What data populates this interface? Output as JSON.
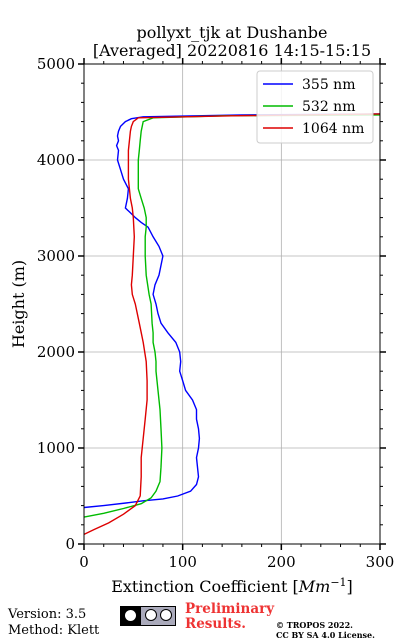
{
  "chart_data": {
    "type": "line",
    "title_line1": "pollyxt_tjk at Dushanbe",
    "title_line2": "[Averaged] 20220816 14:15-15:15",
    "xlabel": "Extinction Coefficient [",
    "xlabel_unit": "Mm",
    "xlabel_exp": "−1",
    "xlabel_close": "]",
    "ylabel": "Height (m)",
    "xlim": [
      0,
      300
    ],
    "ylim": [
      0,
      5000
    ],
    "xticks": [
      0,
      100,
      200,
      300
    ],
    "yticks": [
      0,
      1000,
      2000,
      3000,
      4000,
      5000
    ],
    "grid": true,
    "legend_position": "top-right",
    "series": [
      {
        "name": "355 nm",
        "color": "#0000ff",
        "x": [
          0,
          20,
          45,
          60,
          80,
          95,
          108,
          114,
          116,
          115,
          114,
          116,
          117,
          116,
          114,
          114,
          110,
          103,
          100,
          97,
          98,
          97,
          93,
          85,
          78,
          75,
          73,
          70,
          72,
          76,
          80,
          76,
          70,
          65,
          58,
          52,
          47,
          42,
          44,
          45,
          40,
          37,
          34,
          35,
          33,
          35,
          34,
          35,
          37,
          42,
          48,
          60,
          160,
          300
        ],
        "y": [
          380,
          400,
          430,
          450,
          470,
          500,
          550,
          620,
          700,
          800,
          900,
          1000,
          1100,
          1200,
          1300,
          1400,
          1500,
          1600,
          1700,
          1800,
          1900,
          2000,
          2100,
          2200,
          2300,
          2400,
          2500,
          2600,
          2700,
          2800,
          3000,
          3100,
          3200,
          3300,
          3350,
          3400,
          3450,
          3500,
          3600,
          3700,
          3800,
          3900,
          4000,
          4100,
          4150,
          4200,
          4250,
          4300,
          4350,
          4400,
          4430,
          4450,
          4470,
          4480
        ]
      },
      {
        "name": "532 nm",
        "color": "#00bb00",
        "x": [
          0,
          20,
          40,
          58,
          68,
          73,
          77,
          78,
          79,
          78,
          77,
          75,
          73,
          73,
          72,
          70,
          70,
          69,
          68,
          66,
          63,
          62,
          62,
          63,
          63,
          61,
          58,
          55,
          55,
          55,
          55,
          56,
          57,
          58,
          60,
          70,
          140,
          300
        ],
        "y": [
          280,
          320,
          370,
          420,
          480,
          550,
          650,
          800,
          1000,
          1200,
          1400,
          1600,
          1800,
          1900,
          2000,
          2100,
          2200,
          2300,
          2500,
          2600,
          2800,
          3000,
          3200,
          3300,
          3400,
          3500,
          3600,
          3700,
          3800,
          3900,
          4000,
          4100,
          4200,
          4300,
          4400,
          4440,
          4460,
          4470
        ]
      },
      {
        "name": "1064 nm",
        "color": "#dd0000",
        "x": [
          0,
          10,
          25,
          40,
          52,
          57,
          58,
          58,
          60,
          62,
          64,
          64,
          63,
          60,
          56,
          52,
          49,
          48,
          49,
          50,
          51,
          50,
          49,
          47,
          46,
          45,
          45,
          45,
          45,
          46,
          47,
          48,
          50,
          55,
          150,
          300
        ],
        "y": [
          100,
          150,
          220,
          310,
          400,
          500,
          700,
          900,
          1100,
          1300,
          1500,
          1700,
          1900,
          2100,
          2300,
          2500,
          2600,
          2700,
          2800,
          3000,
          3200,
          3400,
          3500,
          3600,
          3700,
          3800,
          3900,
          4000,
          4100,
          4200,
          4300,
          4350,
          4400,
          4440,
          4460,
          4480
        ]
      }
    ]
  },
  "footer": {
    "version": "Version: 3.5",
    "method": "Method: Klett",
    "prelim_line1": "Preliminary",
    "prelim_line2": "Results.",
    "copyright_line1": "© TROPOS 2022.",
    "copyright_line2": "CC BY SA 4.0 License.",
    "license_badge_icon": "cc-by-sa-icon"
  }
}
